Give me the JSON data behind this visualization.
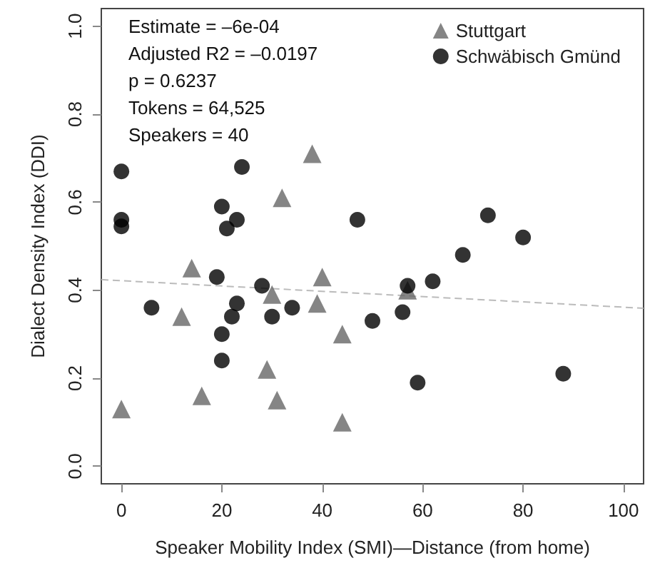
{
  "chart_data": {
    "type": "scatter",
    "xlabel": "Speaker Mobility Index (SMI)—Distance (from home)",
    "ylabel": "Dialect Density Index (DDI)",
    "xlim": [
      -4,
      104
    ],
    "xticks": [
      0,
      20,
      40,
      60,
      80,
      100
    ],
    "ylim": [
      -0.04,
      1.04
    ],
    "yticks": [
      {
        "value": 0,
        "label": "0.0"
      },
      0.2,
      0.4,
      0.6,
      0.8,
      {
        "value": 1,
        "label": "1.0"
      }
    ],
    "grid": false,
    "legend": "top right",
    "annotations": [
      "Estimate = –6e-04",
      "Adjusted R2 = –0.0197",
      "p = 0.6237",
      "Tokens = 64,525",
      "Speakers = 40"
    ],
    "series": [
      {
        "name": "Stuttgart",
        "color": "#666666",
        "marker": "triangle",
        "x": [
          0,
          12,
          14,
          16,
          29,
          30,
          31,
          32,
          38,
          39,
          40,
          44,
          44,
          57
        ],
        "values": [
          0.13,
          0.34,
          0.45,
          0.16,
          0.22,
          0.39,
          0.15,
          0.61,
          0.71,
          0.37,
          0.43,
          0.3,
          0.1,
          0.4
        ]
      },
      {
        "name": "Schwäbisch Gmünd",
        "color": "#000000",
        "marker": "circle",
        "x": [
          0,
          0,
          0,
          6,
          19,
          20,
          20,
          20,
          21,
          22,
          23,
          23,
          24,
          28,
          30,
          34,
          47,
          50,
          56,
          57,
          59,
          62,
          68,
          73,
          80,
          88
        ],
        "values": [
          0.67,
          0.56,
          0.545,
          0.36,
          0.43,
          0.59,
          0.3,
          0.24,
          0.54,
          0.34,
          0.37,
          0.56,
          0.68,
          0.41,
          0.34,
          0.36,
          0.56,
          0.33,
          0.35,
          0.41,
          0.19,
          0.42,
          0.48,
          0.57,
          0.52,
          0.21
        ]
      },
      {
        "type": "line",
        "color": "#bbbbbb",
        "line_style": "dashed",
        "marker": "none",
        "x": [
          -4,
          104
        ],
        "values": [
          0.424,
          0.359
        ]
      }
    ]
  }
}
